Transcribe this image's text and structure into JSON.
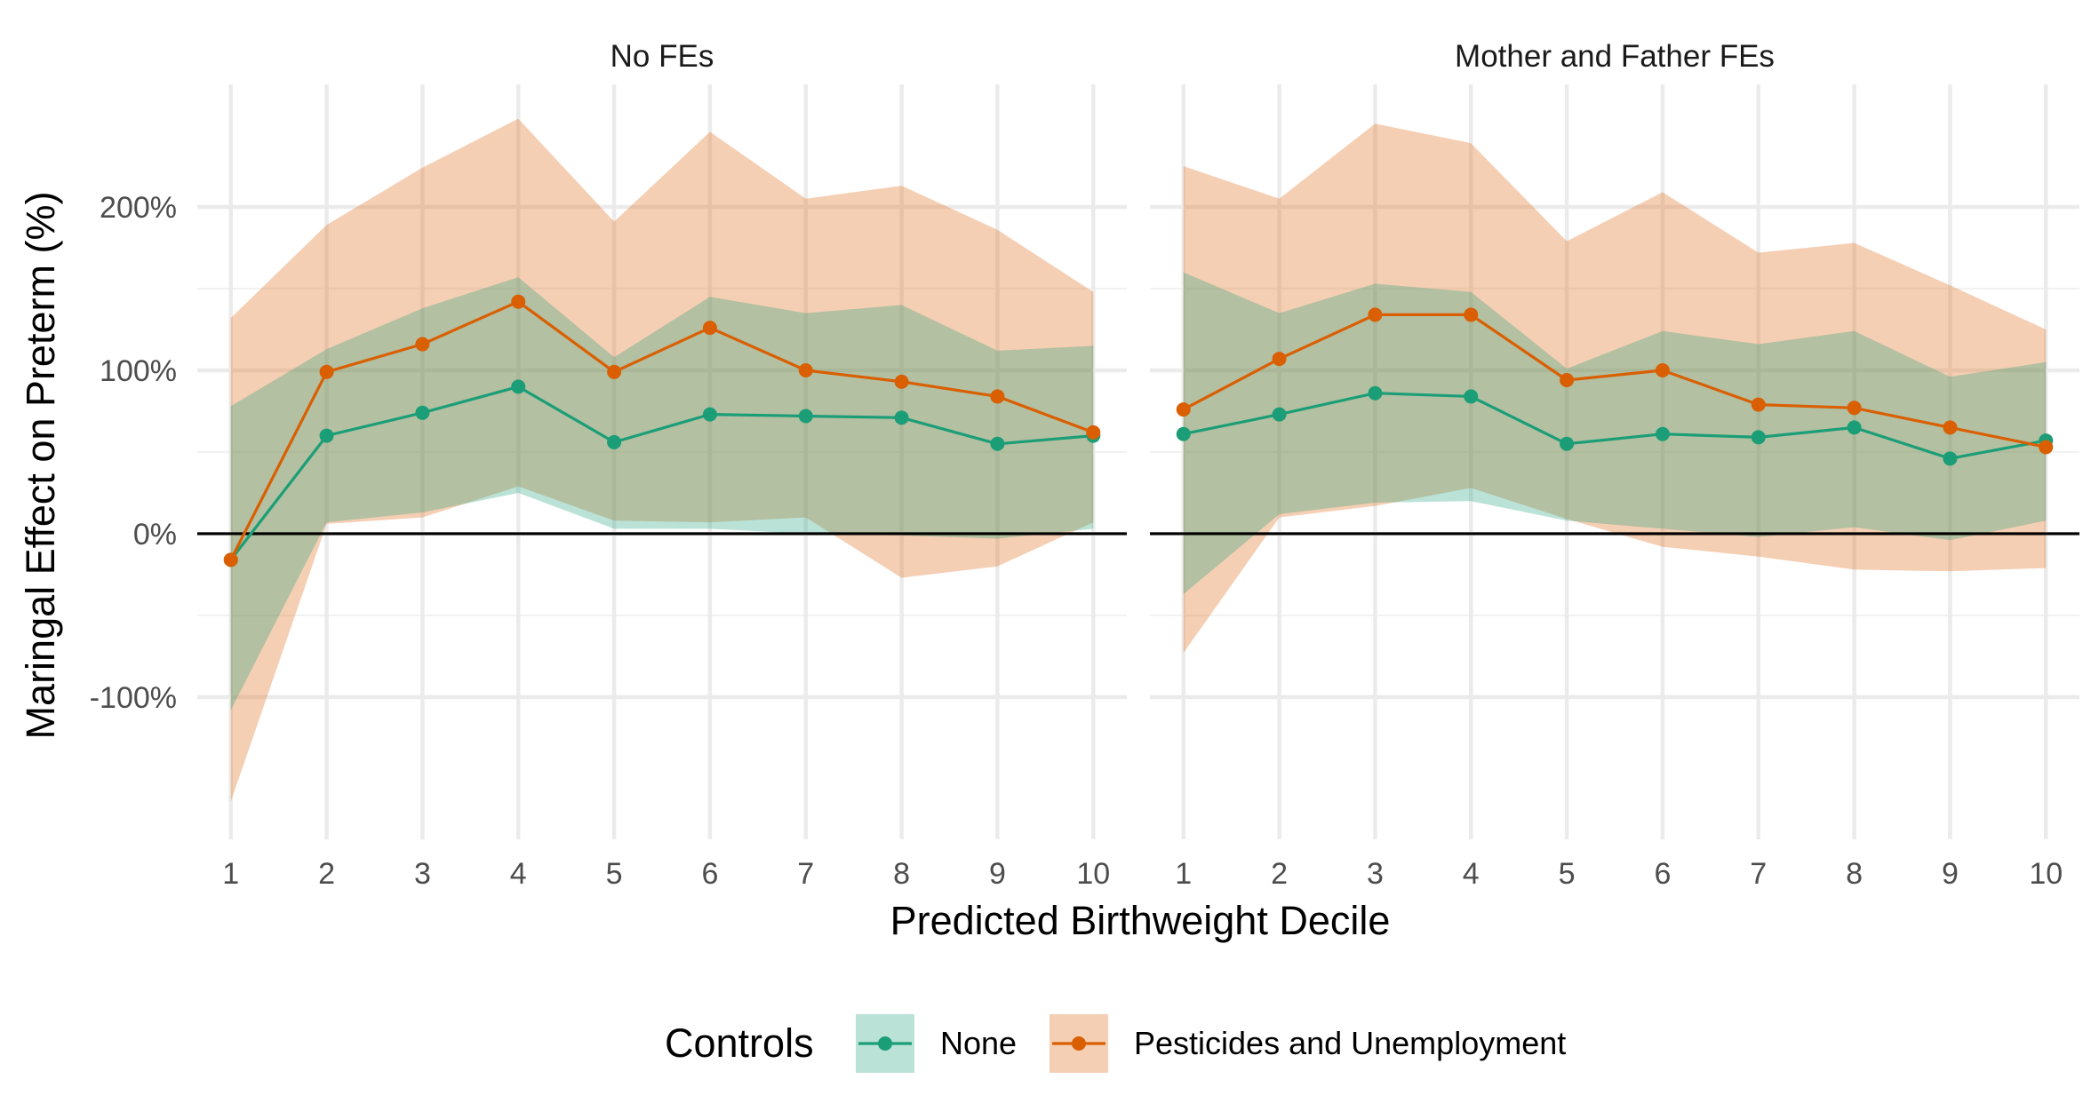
{
  "chart_data": {
    "type": "line",
    "xlabel": "Predicted Birthweight Decile",
    "ylabel": "Maringal Effect on Preterm (%)",
    "x": [
      1,
      2,
      3,
      4,
      5,
      6,
      7,
      8,
      9,
      10
    ],
    "x_tick_labels": [
      "1",
      "2",
      "3",
      "4",
      "5",
      "6",
      "7",
      "8",
      "9",
      "10"
    ],
    "y_tick_values": [
      -100,
      0,
      100,
      200
    ],
    "y_tick_labels": [
      "-100%",
      "0%",
      "100%",
      "200%"
    ],
    "ylim": [
      -187,
      275
    ],
    "xlim": [
      0.65,
      10.35
    ],
    "grid": true,
    "hline_y": 0,
    "legend": {
      "title": "Controls",
      "position": "bottom",
      "entries": [
        {
          "label": "None",
          "color": "#1b9e77"
        },
        {
          "label": "Pesticides and Unemployment",
          "color": "#d95f02"
        }
      ]
    },
    "series_styles": {
      "None": {
        "color": "#1b9e77",
        "ribbon_fill": "#1b9e77",
        "ribbon_opacity": 0.3
      },
      "Pesticides and Unemployment": {
        "color": "#d95f02",
        "ribbon_fill": "#e6813a",
        "ribbon_opacity": 0.38
      }
    },
    "panels": [
      {
        "title": "No FEs",
        "series": [
          {
            "name": "None",
            "values": [
              -16,
              60,
              74,
              90,
              56,
              73,
              72,
              71,
              55,
              60
            ],
            "lower": [
              -108,
              7,
              13,
              25,
              3,
              3,
              0,
              -1,
              -3,
              3
            ],
            "upper": [
              78,
              113,
              138,
              157,
              108,
              145,
              135,
              140,
              112,
              115
            ]
          },
          {
            "name": "Pesticides and Unemployment",
            "values": [
              -16,
              99,
              116,
              142,
              99,
              126,
              100,
              93,
              84,
              62
            ],
            "lower": [
              -164,
              6,
              10,
              29,
              8,
              7,
              10,
              -27,
              -20,
              7
            ],
            "upper": [
              132,
              189,
              224,
              254,
              191,
              246,
              205,
              213,
              186,
              148
            ]
          }
        ]
      },
      {
        "title": "Mother and Father FEs",
        "series": [
          {
            "name": "None",
            "values": [
              61,
              73,
              86,
              84,
              55,
              61,
              59,
              65,
              46,
              57
            ],
            "lower": [
              -37,
              12,
              19,
              20,
              8,
              3,
              -2,
              4,
              -4,
              8
            ],
            "upper": [
              160,
              135,
              153,
              148,
              101,
              124,
              116,
              124,
              96,
              105
            ]
          },
          {
            "name": "Pesticides and Unemployment",
            "values": [
              76,
              107,
              134,
              134,
              94,
              100,
              79,
              77,
              65,
              53
            ],
            "lower": [
              -73,
              10,
              17,
              28,
              9,
              -8,
              -14,
              -22,
              -23,
              -21
            ],
            "upper": [
              225,
              205,
              251,
              239,
              179,
              209,
              172,
              178,
              152,
              125
            ]
          }
        ]
      }
    ]
  }
}
